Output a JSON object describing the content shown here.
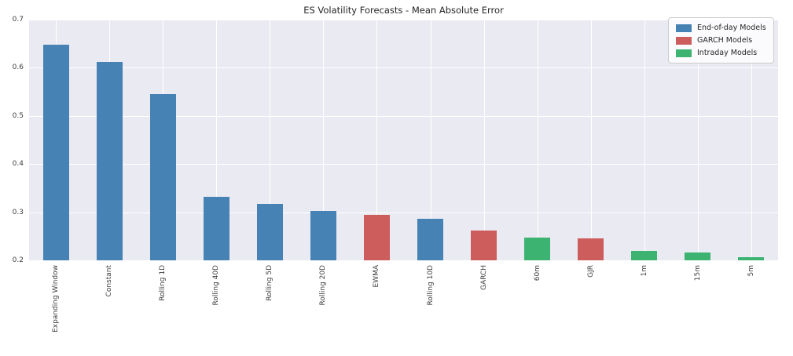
{
  "chart_data": {
    "type": "bar",
    "title": "ES Volatility Forecasts - Mean Absolute Error",
    "xlabel": "",
    "ylabel": "",
    "ylim": [
      0.2,
      0.7
    ],
    "yticks": [
      0.2,
      0.3,
      0.4,
      0.5,
      0.6,
      0.7
    ],
    "grid": true,
    "legend_position": "upper right",
    "legend": [
      {
        "label": "End-of-day Models",
        "color": "#4682b4"
      },
      {
        "label": "GARCH Models",
        "color": "#cd5c5c"
      },
      {
        "label": "Intraday Models",
        "color": "#3cb371"
      }
    ],
    "categories": [
      "Expanding Window",
      "Constant",
      "Rolling 1D",
      "Rolling 40D",
      "Rolling 5D",
      "Rolling 20D",
      "EWMA",
      "Rolling 10D",
      "GARCH",
      "60m",
      "GJR",
      "1m",
      "15m",
      "5m"
    ],
    "values": [
      0.648,
      0.612,
      0.546,
      0.332,
      0.318,
      0.302,
      0.294,
      0.286,
      0.262,
      0.248,
      0.246,
      0.219,
      0.216,
      0.206
    ],
    "groups": [
      "End-of-day Models",
      "End-of-day Models",
      "End-of-day Models",
      "End-of-day Models",
      "End-of-day Models",
      "End-of-day Models",
      "GARCH Models",
      "End-of-day Models",
      "GARCH Models",
      "Intraday Models",
      "GARCH Models",
      "Intraday Models",
      "Intraday Models",
      "Intraday Models"
    ]
  },
  "colors": {
    "plot_background": "#eaeaf2",
    "gridline": "#ffffff",
    "figure_background": "#ffffff",
    "title_text": "#262626",
    "tick_text": "#3d3d3d"
  }
}
